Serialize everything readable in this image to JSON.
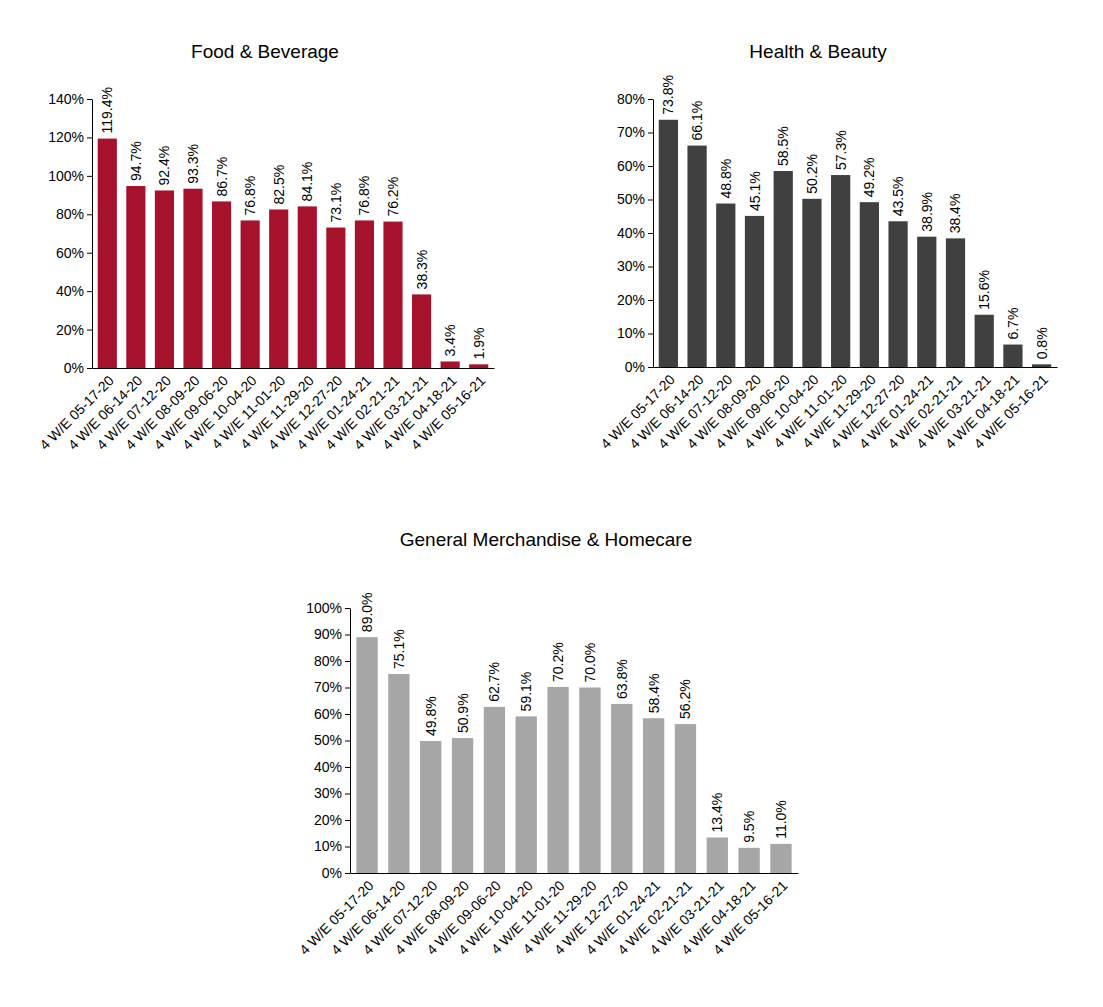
{
  "chart_data": [
    {
      "type": "bar",
      "title": "Food & Beverage",
      "categories": [
        "4 W/E 05-17-20",
        "4 W/E 06-14-20",
        "4 W/E 07-12-20",
        "4 W/E 08-09-20",
        "4 W/E 09-06-20",
        "4 W/E 10-04-20",
        "4 W/E 11-01-20",
        "4 W/E 11-29-20",
        "4 W/E 12-27-20",
        "4 W/E 01-24-21",
        "4 W/E 02-21-21",
        "4 W/E 03-21-21",
        "4 W/E 04-18-21",
        "4 W/E 05-16-21"
      ],
      "values": [
        119.4,
        94.7,
        92.4,
        93.3,
        86.7,
        76.8,
        82.5,
        84.1,
        73.1,
        76.8,
        76.2,
        38.3,
        3.4,
        1.9
      ],
      "value_labels": [
        "119.4%",
        "94.7%",
        "92.4%",
        "93.3%",
        "86.7%",
        "76.8%",
        "82.5%",
        "84.1%",
        "73.1%",
        "76.8%",
        "76.2%",
        "38.3%",
        "3.4%",
        "1.9%"
      ],
      "color": "#a6112c",
      "ylim": [
        0,
        140
      ],
      "yticks": [
        {
          "value": 0,
          "label": "0%"
        },
        {
          "value": 20,
          "label": "20%"
        },
        {
          "value": 40,
          "label": "40%"
        },
        {
          "value": 60,
          "label": "60%"
        },
        {
          "value": 80,
          "label": "80%"
        },
        {
          "value": 100,
          "label": "100%"
        },
        {
          "value": 120,
          "label": "120%"
        },
        {
          "value": 140,
          "label": "140%"
        }
      ],
      "data_labels": true,
      "grid": false
    },
    {
      "type": "bar",
      "title": "Health & Beauty",
      "categories": [
        "4 W/E 05-17-20",
        "4 W/E 06-14-20",
        "4 W/E 07-12-20",
        "4 W/E 08-09-20",
        "4 W/E 09-06-20",
        "4 W/E 10-04-20",
        "4 W/E 11-01-20",
        "4 W/E 11-29-20",
        "4 W/E 12-27-20",
        "4 W/E 01-24-21",
        "4 W/E 02-21-21",
        "4 W/E 03-21-21",
        "4 W/E 04-18-21",
        "4 W/E 05-16-21"
      ],
      "values": [
        73.8,
        66.1,
        48.8,
        45.1,
        58.5,
        50.2,
        57.3,
        49.2,
        43.5,
        38.9,
        38.4,
        15.6,
        6.7,
        0.8
      ],
      "value_labels": [
        "73.8%",
        "66.1%",
        "48.8%",
        "45.1%",
        "58.5%",
        "50.2%",
        "57.3%",
        "49.2%",
        "43.5%",
        "38.9%",
        "38.4%",
        "15.6%",
        "6.7%",
        "0.8%"
      ],
      "color": "#404040",
      "ylim": [
        0,
        80
      ],
      "yticks": [
        {
          "value": 0,
          "label": "0%"
        },
        {
          "value": 10,
          "label": "10%"
        },
        {
          "value": 20,
          "label": "20%"
        },
        {
          "value": 30,
          "label": "30%"
        },
        {
          "value": 40,
          "label": "40%"
        },
        {
          "value": 50,
          "label": "50%"
        },
        {
          "value": 60,
          "label": "60%"
        },
        {
          "value": 70,
          "label": "70%"
        },
        {
          "value": 80,
          "label": "80%"
        }
      ],
      "data_labels": true,
      "grid": false
    },
    {
      "type": "bar",
      "title": "General Merchandise & Homecare",
      "categories": [
        "4 W/E 05-17-20",
        "4 W/E 06-14-20",
        "4 W/E 07-12-20",
        "4 W/E 08-09-20",
        "4 W/E 09-06-20",
        "4 W/E 10-04-20",
        "4 W/E 11-01-20",
        "4 W/E 11-29-20",
        "4 W/E 12-27-20",
        "4 W/E 01-24-21",
        "4 W/E 02-21-21",
        "4 W/E 03-21-21",
        "4 W/E 04-18-21",
        "4 W/E 05-16-21"
      ],
      "values": [
        89.0,
        75.1,
        49.8,
        50.9,
        62.7,
        59.1,
        70.2,
        70.0,
        63.8,
        58.4,
        56.2,
        13.4,
        9.5,
        11.0
      ],
      "value_labels": [
        "89.0%",
        "75.1%",
        "49.8%",
        "50.9%",
        "62.7%",
        "59.1%",
        "70.2%",
        "70.0%",
        "63.8%",
        "58.4%",
        "56.2%",
        "13.4%",
        "9.5%",
        "11.0%"
      ],
      "color": "#a6a6a6",
      "ylim": [
        0,
        100
      ],
      "yticks": [
        {
          "value": 0,
          "label": "0%"
        },
        {
          "value": 10,
          "label": "10%"
        },
        {
          "value": 20,
          "label": "20%"
        },
        {
          "value": 30,
          "label": "30%"
        },
        {
          "value": 40,
          "label": "40%"
        },
        {
          "value": 50,
          "label": "50%"
        },
        {
          "value": 60,
          "label": "60%"
        },
        {
          "value": 70,
          "label": "70%"
        },
        {
          "value": 80,
          "label": "80%"
        },
        {
          "value": 90,
          "label": "90%"
        },
        {
          "value": 100,
          "label": "100%"
        }
      ],
      "data_labels": true,
      "grid": false
    }
  ]
}
